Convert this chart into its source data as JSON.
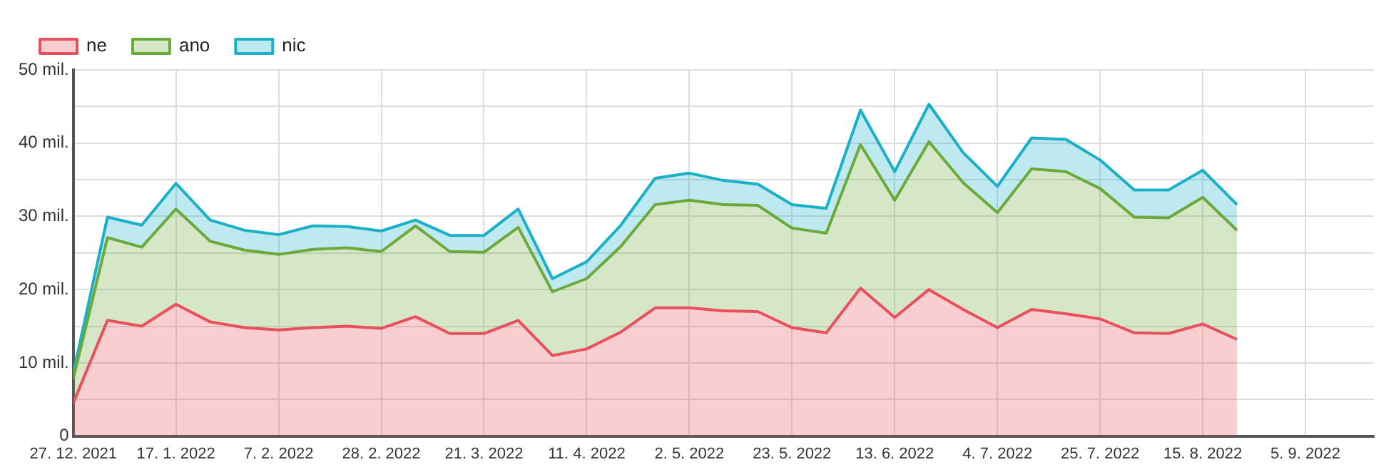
{
  "chart_data": {
    "type": "area",
    "stacked": true,
    "legend": "top left",
    "grid": true,
    "x": [
      "2021-12-27",
      "2022-01-03",
      "2022-01-10",
      "2022-01-17",
      "2022-01-24",
      "2022-01-31",
      "2022-02-07",
      "2022-02-14",
      "2022-02-21",
      "2022-02-28",
      "2022-03-07",
      "2022-03-14",
      "2022-03-21",
      "2022-03-28",
      "2022-04-04",
      "2022-04-11",
      "2022-04-18",
      "2022-04-25",
      "2022-05-02",
      "2022-05-09",
      "2022-05-16",
      "2022-05-23",
      "2022-05-30",
      "2022-06-06",
      "2022-06-13",
      "2022-06-20",
      "2022-06-27",
      "2022-07-04",
      "2022-07-11",
      "2022-07-18",
      "2022-07-25",
      "2022-08-01",
      "2022-08-08",
      "2022-08-15",
      "2022-08-22"
    ],
    "series": [
      {
        "name": "ne",
        "color": "#e8505b",
        "values": [
          4.5,
          15.8,
          15.0,
          18.0,
          15.6,
          14.8,
          14.5,
          14.8,
          15.0,
          14.7,
          16.3,
          14.0,
          14.0,
          15.8,
          11.0,
          11.9,
          14.2,
          17.5,
          17.5,
          17.1,
          17.0,
          14.8,
          14.1,
          20.2,
          16.2,
          20.0,
          17.3,
          14.8,
          17.3,
          16.7,
          16.0,
          14.1,
          14.0,
          15.3,
          13.2
        ]
      },
      {
        "name": "ano",
        "color": "#6aaa3a",
        "values": [
          3.3,
          11.3,
          10.8,
          13.0,
          11.0,
          10.6,
          10.3,
          10.7,
          10.7,
          10.5,
          12.4,
          11.2,
          11.1,
          12.7,
          8.7,
          9.6,
          11.7,
          14.1,
          14.7,
          14.5,
          14.5,
          13.6,
          13.6,
          19.6,
          16.0,
          20.2,
          17.3,
          15.7,
          19.2,
          19.4,
          17.8,
          15.8,
          15.8,
          17.3,
          14.9
        ]
      },
      {
        "name": "nic",
        "color": "#1ab0c8",
        "values": [
          0.8,
          2.8,
          3.0,
          3.5,
          2.9,
          2.7,
          2.7,
          3.2,
          2.9,
          2.8,
          0.8,
          2.2,
          2.3,
          2.5,
          1.8,
          2.3,
          2.9,
          3.6,
          3.7,
          3.3,
          2.9,
          3.2,
          3.4,
          4.7,
          3.9,
          5.1,
          4.1,
          3.6,
          4.2,
          4.4,
          3.9,
          3.7,
          3.8,
          3.7,
          3.5
        ]
      }
    ],
    "xlim": [
      "2021-12-27",
      "2022-09-19"
    ],
    "xticks": [
      {
        "value": "2021-12-27",
        "label": "27. 12. 2021"
      },
      {
        "value": "2022-01-17",
        "label": "17. 1. 2022"
      },
      {
        "value": "2022-02-07",
        "label": "7. 2. 2022"
      },
      {
        "value": "2022-02-28",
        "label": "28. 2. 2022"
      },
      {
        "value": "2022-03-21",
        "label": "21. 3. 2022"
      },
      {
        "value": "2022-04-11",
        "label": "11. 4. 2022"
      },
      {
        "value": "2022-05-02",
        "label": "2. 5. 2022"
      },
      {
        "value": "2022-05-23",
        "label": "23. 5. 2022"
      },
      {
        "value": "2022-06-13",
        "label": "13. 6. 2022"
      },
      {
        "value": "2022-07-04",
        "label": "4. 7. 2022"
      },
      {
        "value": "2022-07-25",
        "label": "25. 7. 2022"
      },
      {
        "value": "2022-08-15",
        "label": "15. 8. 2022"
      },
      {
        "value": "2022-09-05",
        "label": "5. 9. 2022"
      }
    ],
    "ylim": [
      0,
      50
    ],
    "yticks": [
      0,
      {
        "value": 5,
        "label": null
      },
      {
        "value": 10,
        "label": "10 mil."
      },
      {
        "value": 15,
        "label": null
      },
      {
        "value": 20,
        "label": "20 mil."
      },
      {
        "value": 25,
        "label": null
      },
      {
        "value": 30,
        "label": "30 mil."
      },
      {
        "value": 35,
        "label": null
      },
      {
        "value": 40,
        "label": "40 mil."
      },
      {
        "value": 45,
        "label": null
      },
      {
        "value": 50,
        "label": "50 mil."
      }
    ]
  }
}
